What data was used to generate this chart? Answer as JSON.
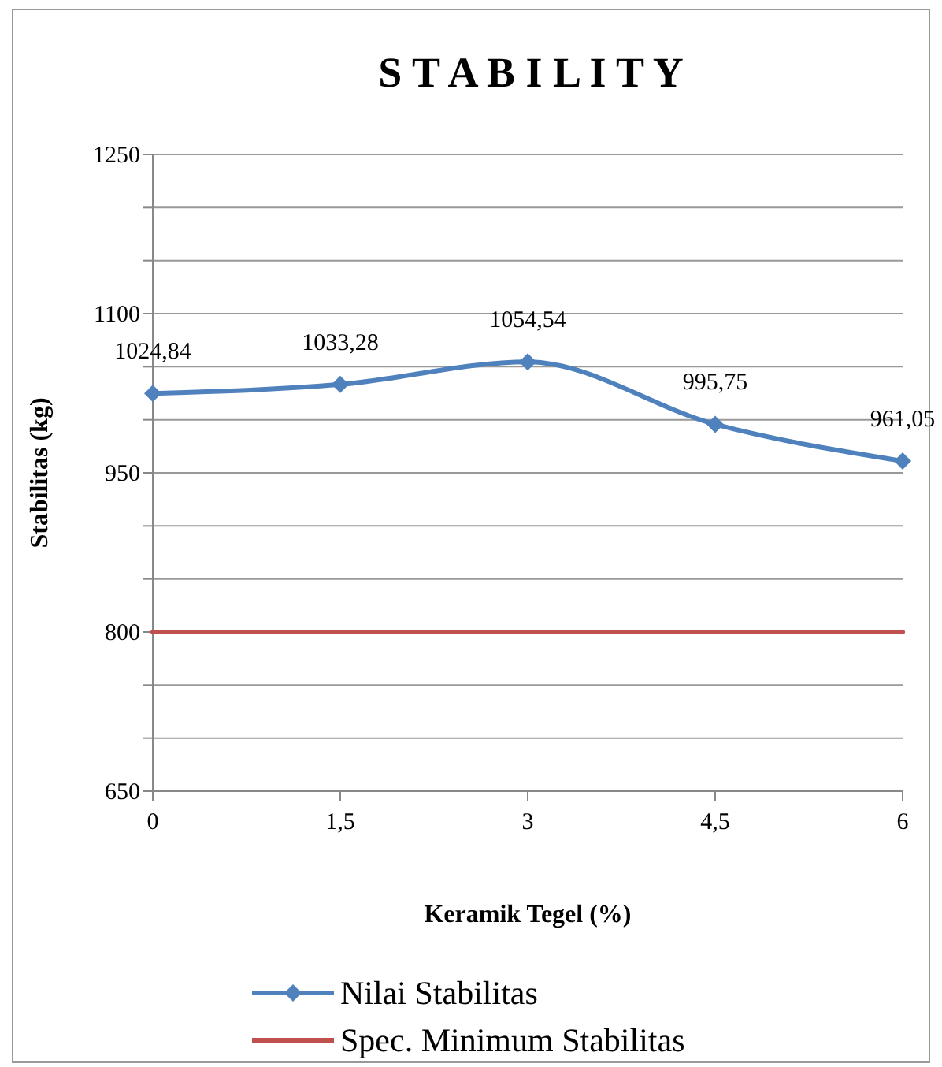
{
  "chart_data": {
    "type": "line",
    "title": "S T A B I L I T Y",
    "xlabel": "Keramik Tegel (%)",
    "ylabel": "Stabilitas (kg)",
    "x": [
      0,
      1.5,
      3,
      4.5,
      6
    ],
    "xlim": [
      0,
      6
    ],
    "xticks": [
      0,
      {
        "value": 1.5,
        "label": "1,5"
      },
      3,
      {
        "value": 4.5,
        "label": "4,5"
      },
      6
    ],
    "ylim": [
      650,
      1250
    ],
    "yticks": [
      650,
      {
        "value": 700,
        "label": null
      },
      {
        "value": 750,
        "label": null
      },
      800,
      {
        "value": 850,
        "label": null
      },
      {
        "value": 900,
        "label": null
      },
      950,
      {
        "value": 1000,
        "label": null
      },
      {
        "value": 1050,
        "label": null
      },
      1100,
      {
        "value": 1150,
        "label": null
      },
      {
        "value": 1200,
        "label": null
      },
      1250
    ],
    "grid": "y",
    "legend": "bottom",
    "line_style": "solid",
    "series": [
      {
        "name": "Nilai Stabilitas",
        "color": "#4f81bd",
        "marker": "diamond",
        "values": [
          1024.84,
          1033.28,
          1054.54,
          995.75,
          961.05
        ],
        "value_labels": [
          "1024,84",
          "1033,28",
          "1054,54",
          "995,75",
          "961,05"
        ]
      },
      {
        "name": "Spec. Minimum Stabilitas",
        "color": "#c0504d",
        "marker": "none",
        "values": [
          800,
          800,
          800,
          800,
          800
        ]
      }
    ]
  }
}
